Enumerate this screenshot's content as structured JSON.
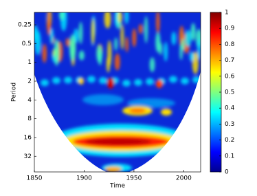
{
  "chart_data": {
    "type": "wavelet-coherence",
    "xlabel": "Time",
    "ylabel": "Period",
    "xlim": [
      1850,
      2017
    ],
    "xticks": [
      1850,
      1900,
      1950,
      2000
    ],
    "ylim": [
      0.158,
      57
    ],
    "yticks": [
      0.25,
      0.5,
      1,
      2,
      4,
      8,
      16,
      32
    ],
    "ylog": true,
    "yreversed": true,
    "colorbar": {
      "lim": [
        0,
        1
      ],
      "ticks": [
        0,
        0.1,
        0.2,
        0.3,
        0.4,
        0.5,
        0.6,
        0.7,
        0.8,
        0.9,
        1
      ],
      "colormap": "jet"
    }
  }
}
